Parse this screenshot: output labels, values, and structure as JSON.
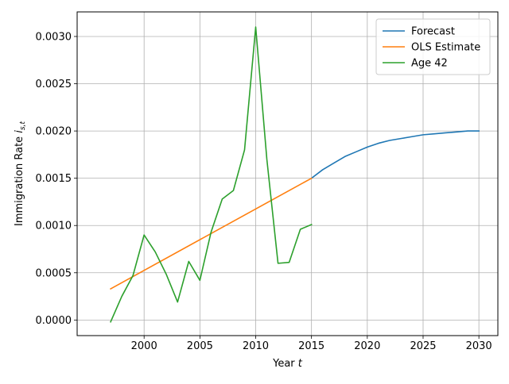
{
  "chart_data": {
    "type": "line",
    "title": "",
    "xlabel": "Year t",
    "ylabel": "Immigration Rate i_{s,t}",
    "xlim": [
      1994,
      2031.7
    ],
    "ylim": [
      -0.000165,
      0.00326
    ],
    "x_ticks": [
      2000,
      2005,
      2010,
      2015,
      2020,
      2025,
      2030
    ],
    "y_ticks": [
      0.0,
      0.0005,
      0.001,
      0.0015,
      0.002,
      0.0025,
      0.003
    ],
    "x_tick_labels": [
      "2000",
      "2005",
      "2010",
      "2015",
      "2020",
      "2025",
      "2030"
    ],
    "y_tick_labels": [
      "0.0000",
      "0.0005",
      "0.0010",
      "0.0015",
      "0.0020",
      "0.0025",
      "0.0030"
    ],
    "grid": true,
    "legend_position": "top-right",
    "series": [
      {
        "name": "Forecast",
        "color": "#1f77b4",
        "x": [
          2015,
          2016,
          2017,
          2018,
          2019,
          2020,
          2021,
          2022,
          2023,
          2024,
          2025,
          2026,
          2027,
          2028,
          2029,
          2030
        ],
        "y": [
          0.0015,
          0.00159,
          0.00166,
          0.00173,
          0.00178,
          0.00183,
          0.00187,
          0.0019,
          0.00192,
          0.00194,
          0.00196,
          0.00197,
          0.00198,
          0.00199,
          0.002,
          0.002
        ]
      },
      {
        "name": "OLS Estimate",
        "color": "#ff7f0e",
        "x": [
          1997,
          2015
        ],
        "y": [
          0.00033,
          0.0015
        ]
      },
      {
        "name": "Age 42",
        "color": "#2ca02c",
        "x": [
          1997,
          1998,
          1999,
          2000,
          2001,
          2002,
          2003,
          2004,
          2005,
          2006,
          2007,
          2008,
          2009,
          2010,
          2011,
          2012,
          2013,
          2014,
          2015
        ],
        "y": [
          -2e-05,
          0.00025,
          0.00047,
          0.0009,
          0.00072,
          0.00048,
          0.00019,
          0.00062,
          0.00042,
          0.00093,
          0.00128,
          0.00137,
          0.0018,
          0.0031,
          0.0017,
          0.0006,
          0.00061,
          0.00096,
          0.00101
        ]
      }
    ]
  }
}
